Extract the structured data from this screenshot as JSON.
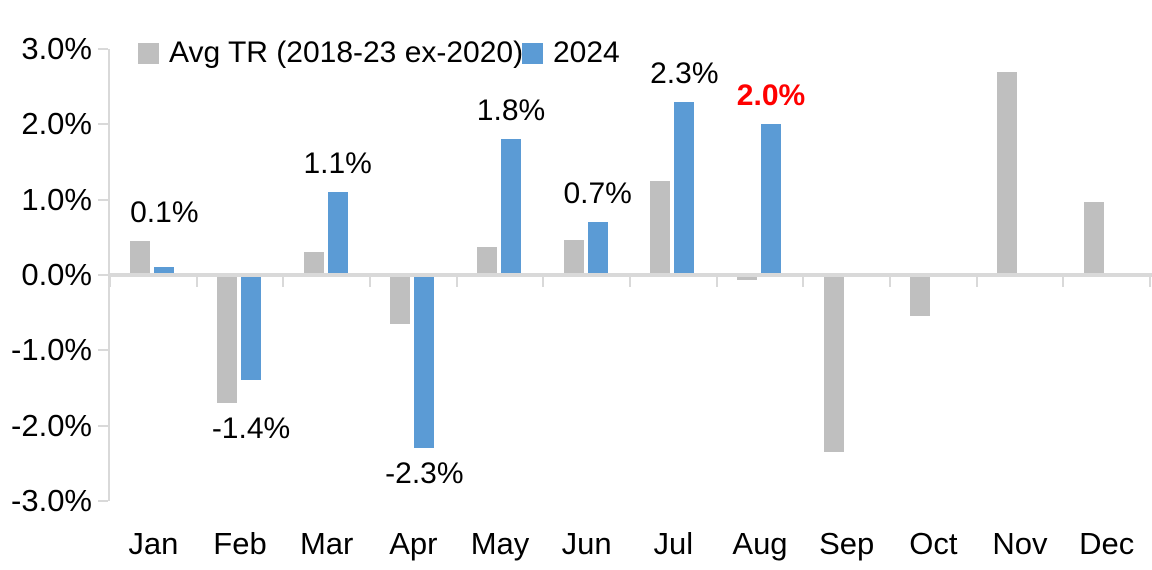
{
  "chart_data": {
    "type": "bar",
    "title": "",
    "categories": [
      "Jan",
      "Feb",
      "Mar",
      "Apr",
      "May",
      "Jun",
      "Jul",
      "Aug",
      "Sep",
      "Oct",
      "Nov",
      "Dec"
    ],
    "series": [
      {
        "name": "Avg TR (2018-23 ex-2020)",
        "color": "#BFBFBF",
        "values": [
          0.45,
          -1.7,
          0.3,
          -0.65,
          0.37,
          0.47,
          1.25,
          -0.07,
          -2.35,
          -0.55,
          2.7,
          0.97
        ]
      },
      {
        "name": "2024",
        "color": "#5B9BD5",
        "values": [
          0.1,
          -1.4,
          1.1,
          -2.3,
          1.8,
          0.7,
          2.3,
          2.0,
          null,
          null,
          null,
          null
        ]
      }
    ],
    "data_labels": [
      {
        "index": 0,
        "text": "0.1%",
        "color": "#000000",
        "bold": false
      },
      {
        "index": 1,
        "text": "-1.4%",
        "color": "#000000",
        "bold": false
      },
      {
        "index": 2,
        "text": "1.1%",
        "color": "#000000",
        "bold": false
      },
      {
        "index": 3,
        "text": "-2.3%",
        "color": "#000000",
        "bold": false
      },
      {
        "index": 4,
        "text": "1.8%",
        "color": "#000000",
        "bold": false
      },
      {
        "index": 5,
        "text": "0.7%",
        "color": "#000000",
        "bold": false
      },
      {
        "index": 6,
        "text": "2.3%",
        "color": "#000000",
        "bold": false
      },
      {
        "index": 7,
        "text": "2.0%",
        "color": "#FF0000",
        "bold": true
      }
    ],
    "ylim": [
      -3,
      3
    ],
    "ytick_step": 1,
    "yticks": [
      "3.0%",
      "2.0%",
      "1.0%",
      "0.0%",
      "-1.0%",
      "-2.0%",
      "-3.0%"
    ],
    "xlabel": "",
    "ylabel": "",
    "grid": false,
    "legend_position": "top",
    "axis_color": "#D9D9D9",
    "background": "#FFFFFF"
  }
}
